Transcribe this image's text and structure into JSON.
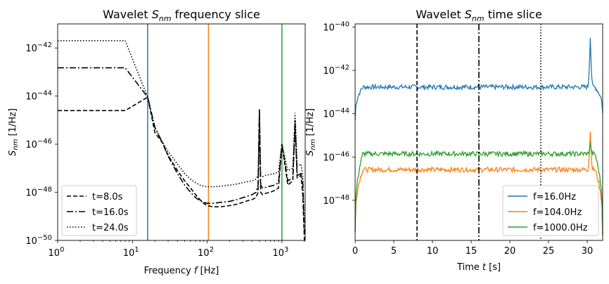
{
  "chart_data": [
    {
      "type": "line",
      "title_prefix": "Wavelet ",
      "title_sym": "S",
      "title_sub": "nm",
      "title_suffix": " frequency slice",
      "xlabel": "Frequency f [Hz]",
      "xlabel_parts": [
        "Frequency ",
        "f",
        " [Hz]"
      ],
      "ylabel_sym": "S",
      "ylabel_sub": "nm",
      "ylabel_unit": " [1/Hz]",
      "xscale": "log",
      "yscale": "log",
      "xlim": [
        1,
        2048
      ],
      "ylim": [
        1e-50,
        1e-41
      ],
      "xticks": [
        {
          "value": 1,
          "base": "10",
          "exp": "0"
        },
        {
          "value": 10,
          "base": "10",
          "exp": "1"
        },
        {
          "value": 100,
          "base": "10",
          "exp": "2"
        },
        {
          "value": 1000,
          "base": "10",
          "exp": "3"
        }
      ],
      "yticks": [
        {
          "value": 1e-42,
          "base": "10",
          "exp": "−42"
        },
        {
          "value": 1e-44,
          "base": "10",
          "exp": "−44"
        },
        {
          "value": 1e-46,
          "base": "10",
          "exp": "−46"
        },
        {
          "value": 1e-48,
          "base": "10",
          "exp": "−48"
        },
        {
          "value": 1e-50,
          "base": "10",
          "exp": "−50"
        }
      ],
      "vlines": [
        {
          "x": 16,
          "color": "#1f77b4"
        },
        {
          "x": 104,
          "color": "#ff7f0e"
        },
        {
          "x": 1000,
          "color": "#2ca02c"
        }
      ],
      "series": [
        {
          "name": "t=8.0s",
          "style": "dashed",
          "color": "#000000",
          "x": [
            1,
            8,
            16,
            20,
            25,
            30,
            40,
            50,
            60,
            70,
            80,
            90,
            100,
            120,
            150,
            200,
            250,
            300,
            350,
            400,
            450,
            480,
            500,
            520,
            550,
            600,
            700,
            800,
            900,
            1000,
            1200,
            1400,
            1500,
            1600,
            1800,
            1900,
            2000
          ],
          "y": [
            2.5e-45,
            2.5e-45,
            9e-45,
            3e-46,
            1.2e-46,
            3.5e-47,
            8e-48,
            3e-48,
            1.5e-48,
            8e-49,
            5e-49,
            3.5e-49,
            2.8e-49,
            2.5e-49,
            2.5e-49,
            2.8e-49,
            3.2e-49,
            3.8e-49,
            4.5e-49,
            5e-49,
            6e-49,
            1e-48,
            3e-45,
            1e-48,
            8e-49,
            9e-49,
            1e-48,
            1.2e-48,
            1.5e-48,
            1e-46,
            2e-48,
            3e-48,
            1e-45,
            4e-48,
            5e-48,
            8e-49,
            1e-50
          ]
        },
        {
          "name": "t=16.0s",
          "style": "dashdot",
          "color": "#000000",
          "x": [
            1,
            8,
            16,
            20,
            25,
            30,
            40,
            50,
            60,
            70,
            80,
            90,
            100,
            120,
            150,
            200,
            250,
            300,
            350,
            400,
            450,
            480,
            500,
            520,
            550,
            600,
            700,
            800,
            900,
            1000,
            1200,
            1400,
            1500,
            1600,
            1800,
            1900,
            2000
          ],
          "y": [
            1.5e-43,
            1.5e-43,
            9e-45,
            5e-46,
            1.2e-46,
            3.2e-47,
            6e-48,
            2e-48,
            1e-48,
            6e-49,
            4.5e-49,
            3.8e-49,
            3.5e-49,
            3.5e-49,
            3.8e-49,
            4.2e-49,
            5e-49,
            6e-49,
            7e-49,
            8e-49,
            1e-48,
            2e-48,
            2e-45,
            2e-48,
            1.5e-48,
            1.6e-48,
            1.8e-48,
            2e-48,
            2.5e-48,
            1e-46,
            3e-48,
            4e-48,
            5e-46,
            5e-48,
            6e-48,
            3e-48,
            2e-50
          ]
        },
        {
          "name": "t=24.0s",
          "style": "dotted",
          "color": "#000000",
          "x": [
            1,
            8,
            16,
            20,
            25,
            30,
            40,
            50,
            60,
            70,
            80,
            90,
            100,
            120,
            150,
            200,
            250,
            300,
            350,
            400,
            450,
            480,
            500,
            520,
            550,
            600,
            700,
            800,
            900,
            1000,
            1200,
            1400,
            1500,
            1600,
            1800,
            1900,
            2000
          ],
          "y": [
            2e-42,
            2e-42,
            9e-45,
            5e-46,
            1.3e-46,
            5e-47,
            1.5e-47,
            6e-48,
            3.5e-48,
            2.5e-48,
            2e-48,
            1.8e-48,
            1.7e-48,
            1.7e-48,
            1.8e-48,
            2e-48,
            2.2e-48,
            2.5e-48,
            2.8e-48,
            3e-48,
            3.5e-48,
            5e-48,
            1.5e-45,
            5e-48,
            4.5e-48,
            5e-48,
            5.5e-48,
            6e-48,
            7e-48,
            1e-46,
            8e-48,
            1e-47,
            2e-45,
            1.2e-47,
            1.5e-47,
            5e-48,
            5e-50
          ]
        }
      ],
      "legend_loc": "lower-left"
    },
    {
      "type": "line",
      "title_prefix": "Wavelet ",
      "title_sym": "S",
      "title_sub": "nm",
      "title_suffix": " time slice",
      "xlabel_parts": [
        "Time ",
        "t",
        " [s]"
      ],
      "ylabel_sym": "S",
      "ylabel_sub": "nm",
      "ylabel_unit": " [1/Hz]",
      "xscale": "linear",
      "yscale": "log",
      "xlim": [
        0,
        32
      ],
      "ylim": [
        1.4e-50,
        1.4e-40
      ],
      "xticks": [
        {
          "value": 0,
          "label": "0"
        },
        {
          "value": 5,
          "label": "5"
        },
        {
          "value": 10,
          "label": "10"
        },
        {
          "value": 15,
          "label": "15"
        },
        {
          "value": 20,
          "label": "20"
        },
        {
          "value": 25,
          "label": "25"
        },
        {
          "value": 30,
          "label": "30"
        }
      ],
      "yticks": [
        {
          "value": 1e-40,
          "base": "10",
          "exp": "−40"
        },
        {
          "value": 1e-42,
          "base": "10",
          "exp": "−42"
        },
        {
          "value": 1e-44,
          "base": "10",
          "exp": "−44"
        },
        {
          "value": 1e-46,
          "base": "10",
          "exp": "−46"
        },
        {
          "value": 1e-48,
          "base": "10",
          "exp": "−48"
        }
      ],
      "vlines": [
        {
          "x": 8,
          "style": "dashed",
          "color": "#000000"
        },
        {
          "x": 16,
          "style": "dashdot",
          "color": "#000000"
        },
        {
          "x": 24,
          "style": "dotted",
          "color": "#000000"
        }
      ],
      "series": [
        {
          "name": "f=16.0Hz",
          "color": "#1f77b4",
          "level": 1.7e-43,
          "start": 5e-45,
          "end": 1e-44,
          "spike_t": 30.4,
          "spike": 4e-41
        },
        {
          "name": "f=104.0Hz",
          "color": "#ff7f0e",
          "level": 2.6e-47,
          "start": 4e-50,
          "end": 3e-50,
          "spike_t": 30.4,
          "spike": 1.7e-45
        },
        {
          "name": "f=1000.0Hz",
          "color": "#2ca02c",
          "level": 1.4e-46,
          "start": 3e-50,
          "end": 3e-50,
          "spike_t": 30.4,
          "spike": 4e-46
        }
      ],
      "legend_loc": "lower-right"
    }
  ]
}
